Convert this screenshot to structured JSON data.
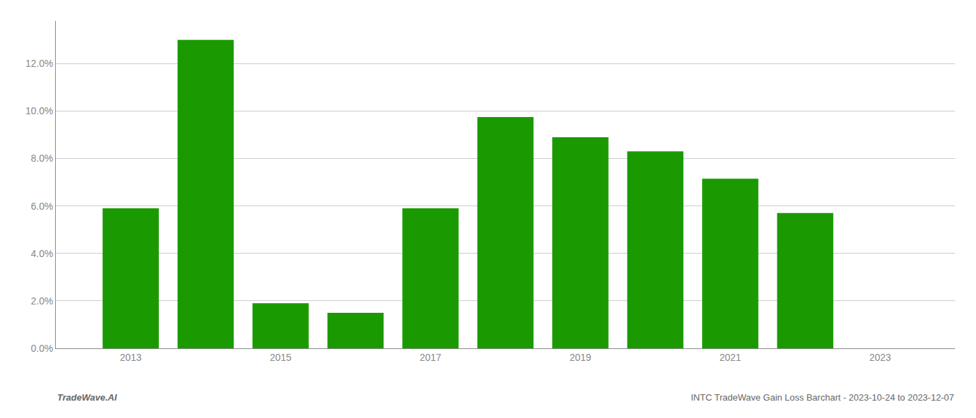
{
  "chart_data": {
    "type": "bar",
    "x": [
      2013,
      2014,
      2015,
      2016,
      2017,
      2018,
      2019,
      2020,
      2021,
      2022,
      2023
    ],
    "values": [
      0.059,
      0.13,
      0.019,
      0.015,
      0.059,
      0.0975,
      0.089,
      0.083,
      0.0715,
      0.057,
      0.0
    ],
    "color": "#1a9a00",
    "xlim": [
      2012.0,
      2024.0
    ],
    "xticks": [
      2013,
      2015,
      2017,
      2019,
      2021,
      2023
    ],
    "ylim": [
      0.0,
      0.138
    ],
    "yticks": [
      {
        "value": 0.0,
        "label": "0.0%"
      },
      {
        "value": 0.02,
        "label": "2.0%"
      },
      {
        "value": 0.04,
        "label": "4.0%"
      },
      {
        "value": 0.06,
        "label": "6.0%"
      },
      {
        "value": 0.08,
        "label": "8.0%"
      },
      {
        "value": 0.1,
        "label": "10.0%"
      },
      {
        "value": 0.12,
        "label": "12.0%"
      }
    ],
    "grid": true,
    "annotations": [
      "TradeWave.AI",
      "INTC TradeWave Gain Loss Barchart - 2023-10-24 to 2023-12-07"
    ]
  }
}
